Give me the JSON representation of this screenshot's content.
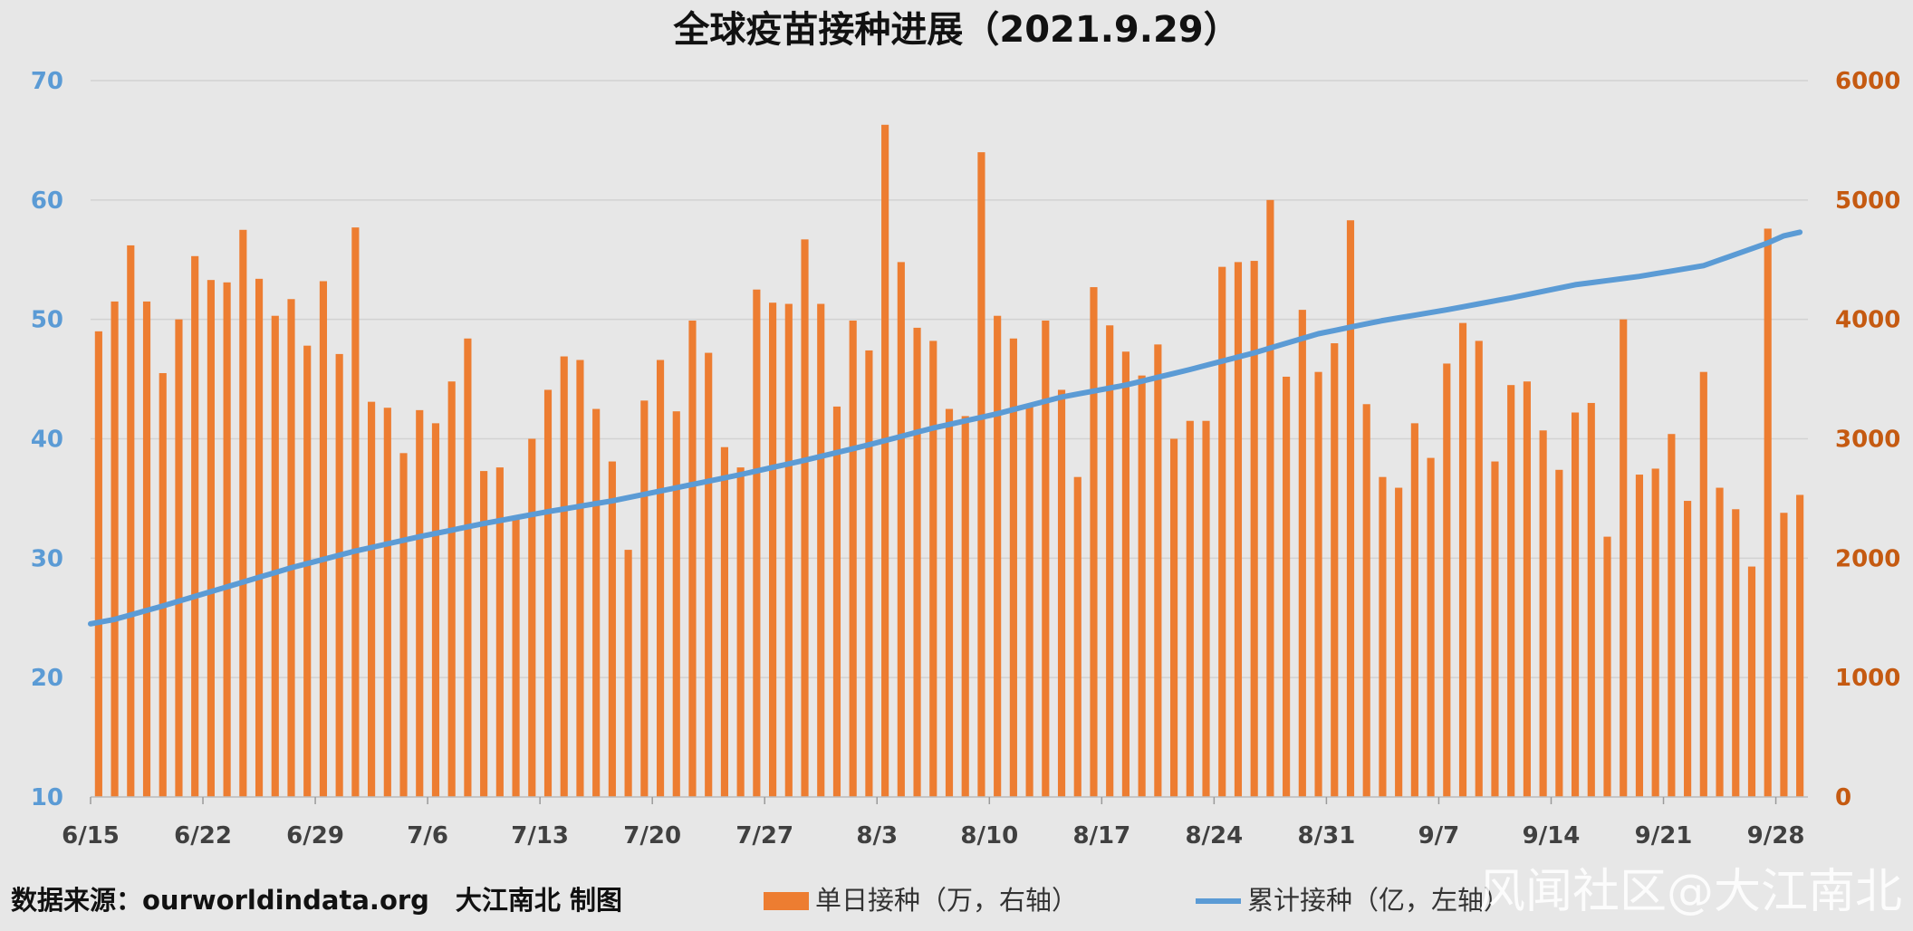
{
  "chart_data": {
    "type": "bar+line",
    "title": "全球疫苗接种进展（2021.9.29）",
    "x_tick_labels": [
      "6/15",
      "6/22",
      "6/29",
      "7/6",
      "7/13",
      "7/20",
      "7/27",
      "8/3",
      "8/10",
      "8/17",
      "8/24",
      "8/31",
      "9/7",
      "9/14",
      "9/21",
      "9/28"
    ],
    "x_start": "6/15",
    "x_end": "9/29",
    "left_axis": {
      "ylim": [
        10,
        70
      ],
      "ticks": [
        10,
        20,
        30,
        40,
        50,
        60,
        70
      ],
      "color": "#5b9bd5"
    },
    "right_axis": {
      "ylim": [
        0,
        6000
      ],
      "ticks": [
        0,
        1000,
        2000,
        3000,
        4000,
        5000,
        6000
      ],
      "color": "#c55a11"
    },
    "grid": true,
    "legend_position": "bottom",
    "series": [
      {
        "name": "单日接种（万，右轴）",
        "type": "bar",
        "axis": "right",
        "color": "#ed7d31",
        "values": [
          3900,
          4150,
          4620,
          4150,
          3550,
          4000,
          4530,
          4330,
          4310,
          4750,
          4340,
          4030,
          4170,
          3780,
          4320,
          3710,
          4770,
          3310,
          3260,
          2880,
          3240,
          3130,
          3480,
          3840,
          2730,
          2760,
          2340,
          3000,
          3410,
          3690,
          3660,
          3250,
          2810,
          2070,
          3320,
          3660,
          3230,
          3990,
          3720,
          2930,
          2760,
          4250,
          4140,
          4130,
          4670,
          4130,
          3270,
          3990,
          3740,
          5630,
          4480,
          3930,
          3820,
          3250,
          3190,
          5400,
          4030,
          3840,
          3270,
          3990,
          3410,
          2680,
          4270,
          3950,
          3730,
          3530,
          3790,
          3000,
          3150,
          3150,
          4440,
          4480,
          4490,
          5000,
          3520,
          4080,
          3560,
          3800,
          4830,
          3290,
          2680,
          2590,
          3130,
          2840,
          3630,
          3970,
          3820,
          2810,
          3450,
          3480,
          3070,
          2740,
          3220,
          3300,
          2180,
          4000,
          2700,
          2750,
          3040,
          2480,
          3560,
          2590,
          2410,
          1930,
          4760,
          2380,
          2530
        ]
      },
      {
        "name": "累计接种（亿，左轴）",
        "type": "line",
        "axis": "left",
        "color": "#5b9bd5",
        "x_index": [
          0,
          4,
          8,
          12,
          16,
          20,
          24,
          28,
          32,
          36,
          40,
          44,
          48,
          52,
          56,
          60,
          64,
          68,
          72,
          76,
          80,
          84,
          88,
          92,
          96,
          100,
          104,
          105,
          106
        ],
        "values": [
          24.5,
          26.0,
          27.6,
          29.2,
          30.6,
          31.8,
          32.9,
          33.9,
          34.8,
          35.9,
          37.0,
          38.2,
          39.5,
          40.9,
          42.1,
          43.5,
          44.5,
          45.8,
          47.2,
          48.8,
          49.9,
          50.8,
          51.8,
          52.9,
          53.6,
          54.5,
          56.4,
          57.0,
          57.3
        ]
      }
    ]
  },
  "footer": {
    "source": "数据来源：ourworldindata.org　大江南北 制图",
    "legend_bar": "单日接种（万，右轴）",
    "legend_line": "累计接种（亿，左轴）",
    "watermark": "风闻社区@大江南北"
  }
}
